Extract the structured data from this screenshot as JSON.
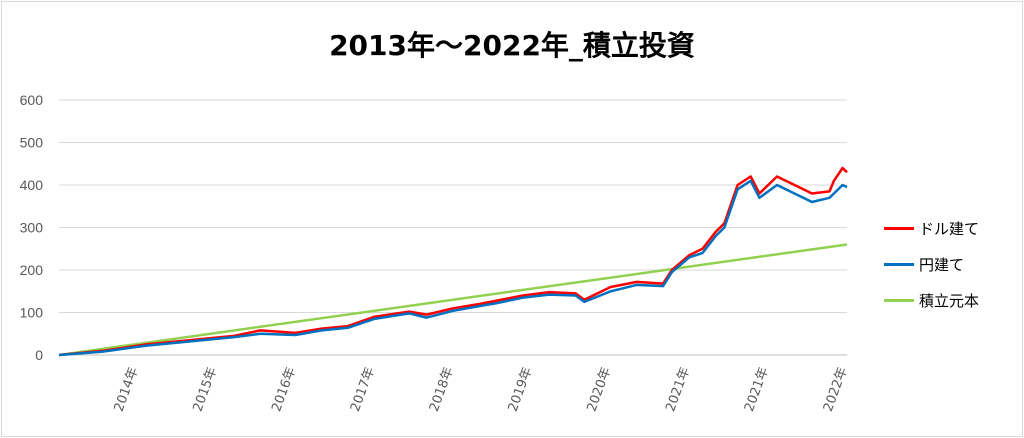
{
  "chart_data": {
    "type": "line",
    "title": "2013年～2022年_積立投資",
    "xlabel": "",
    "ylabel": "",
    "ylim": [
      0,
      600
    ],
    "yticks": [
      0,
      100,
      200,
      300,
      400,
      500,
      600
    ],
    "grid": true,
    "legend_position": "right",
    "x_tick_labels": [
      "2014年",
      "2015年",
      "2016年",
      "2017年",
      "2018年",
      "2019年",
      "2020年",
      "2021年",
      "2021年",
      "2022年"
    ],
    "x_range_years": [
      2013.0,
      2022.0
    ],
    "series": [
      {
        "name": "ドル建て",
        "color": "#ff0000",
        "x": [
          2013.0,
          2013.5,
          2014.0,
          2014.5,
          2015.0,
          2015.3,
          2015.7,
          2016.0,
          2016.3,
          2016.6,
          2017.0,
          2017.2,
          2017.5,
          2017.8,
          2018.0,
          2018.3,
          2018.6,
          2018.9,
          2019.0,
          2019.3,
          2019.6,
          2019.9,
          2020.0,
          2020.2,
          2020.35,
          2020.5,
          2020.6,
          2020.75,
          2020.9,
          2021.0,
          2021.2,
          2021.4,
          2021.6,
          2021.8,
          2021.85,
          2021.95,
          2022.0
        ],
        "values": [
          0,
          10,
          25,
          35,
          45,
          58,
          52,
          62,
          68,
          90,
          102,
          95,
          110,
          120,
          128,
          140,
          148,
          145,
          130,
          160,
          172,
          168,
          200,
          235,
          250,
          290,
          310,
          400,
          420,
          380,
          420,
          400,
          380,
          385,
          410,
          440,
          430
        ]
      },
      {
        "name": "円建て",
        "color": "#0070c0",
        "x": [
          2013.0,
          2013.5,
          2014.0,
          2014.5,
          2015.0,
          2015.3,
          2015.7,
          2016.0,
          2016.3,
          2016.6,
          2017.0,
          2017.2,
          2017.5,
          2017.8,
          2018.0,
          2018.3,
          2018.6,
          2018.9,
          2019.0,
          2019.3,
          2019.6,
          2019.9,
          2020.0,
          2020.2,
          2020.35,
          2020.5,
          2020.6,
          2020.75,
          2020.9,
          2021.0,
          2021.2,
          2021.4,
          2021.6,
          2021.8,
          2021.85,
          2021.95,
          2022.0
        ],
        "values": [
          0,
          8,
          22,
          32,
          42,
          50,
          47,
          58,
          64,
          85,
          98,
          88,
          104,
          115,
          122,
          135,
          142,
          140,
          125,
          150,
          165,
          162,
          195,
          230,
          240,
          280,
          300,
          390,
          410,
          370,
          400,
          380,
          360,
          370,
          380,
          400,
          395
        ]
      },
      {
        "name": "積立元本",
        "color": "#92d050",
        "x": [
          2013.0,
          2022.0
        ],
        "values": [
          0,
          260
        ]
      }
    ]
  }
}
